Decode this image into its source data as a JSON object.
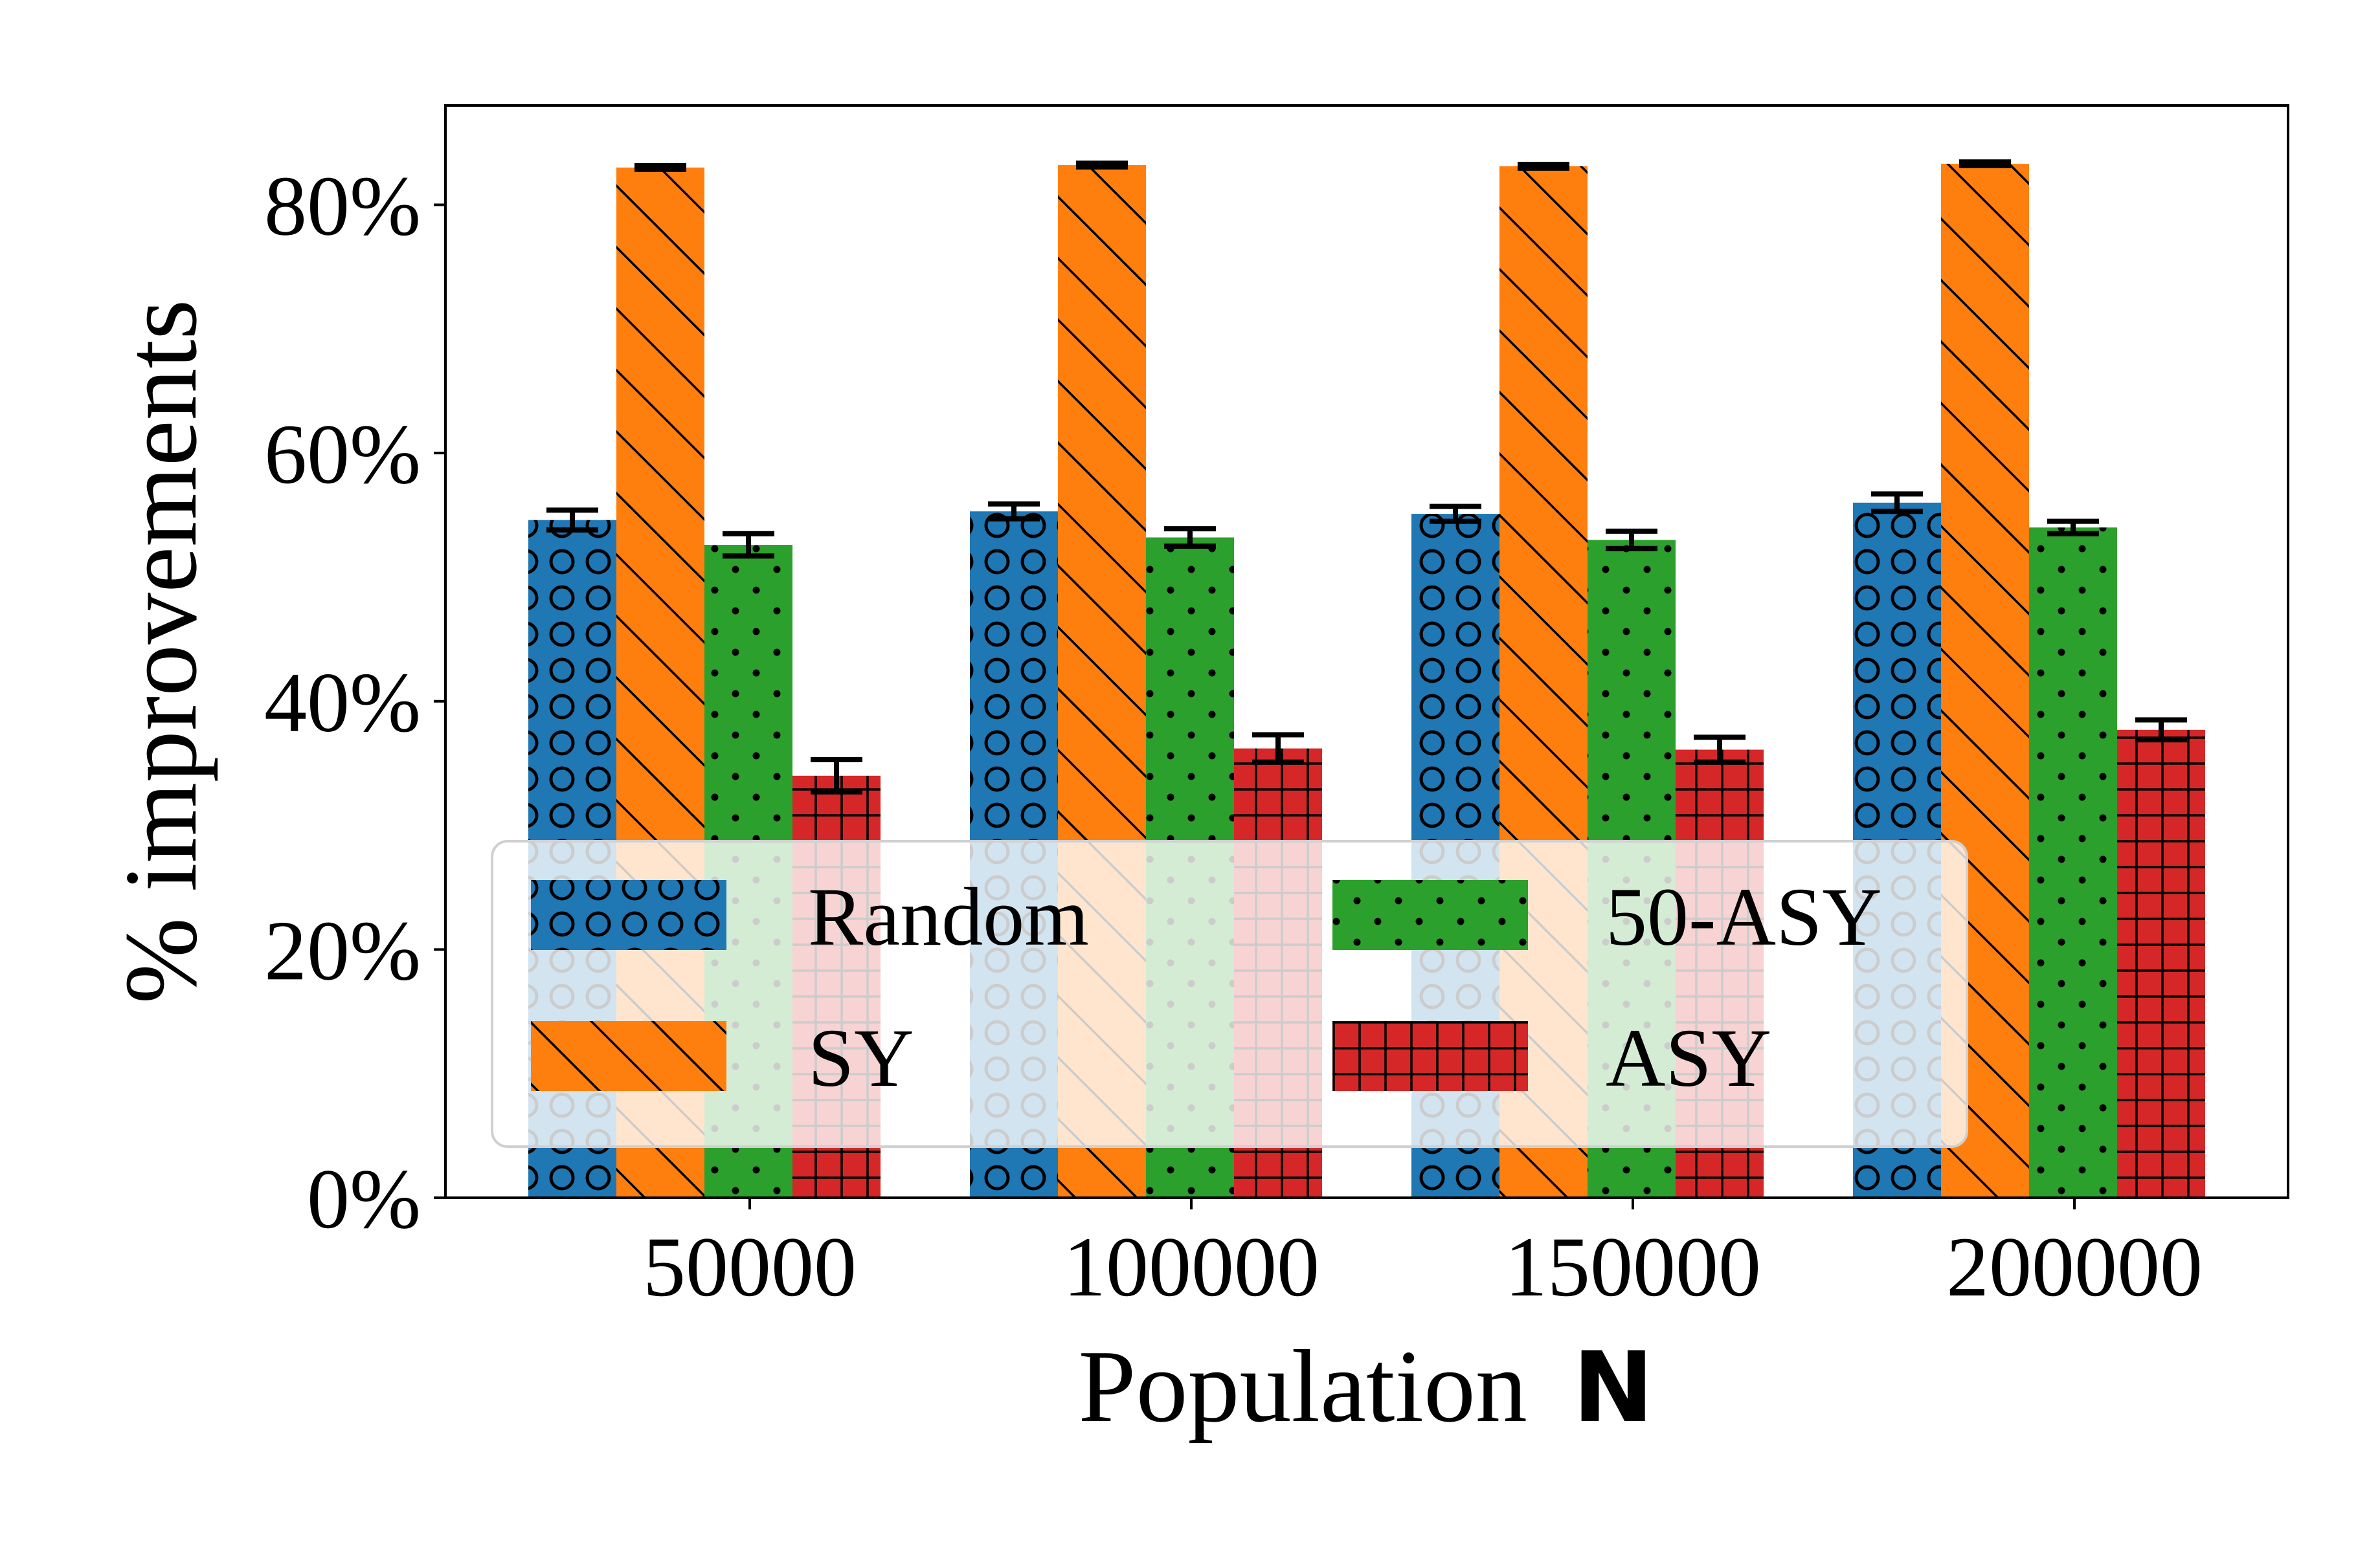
{
  "chart_data": {
    "type": "bar",
    "title": "",
    "xlabel": "Population",
    "xlabel_symbol": "N",
    "ylabel": "% improvements",
    "categories": [
      "50000",
      "100000",
      "150000",
      "200000"
    ],
    "ylim": [
      0,
      88
    ],
    "yticks": [
      0,
      20,
      40,
      60,
      80
    ],
    "ytick_labels": [
      "0%",
      "20%",
      "40%",
      "60%",
      "80%"
    ],
    "grid": false,
    "legend_position": "lower-center",
    "series": [
      {
        "name": "Random",
        "color": "#1f77b4",
        "hatch": "circles",
        "values": [
          54.6,
          55.3,
          55.1,
          56.0
        ],
        "errors": [
          0.8,
          0.6,
          0.6,
          0.7
        ]
      },
      {
        "name": "SY",
        "color": "#ff7f0e",
        "hatch": "diagonal",
        "values": [
          83.0,
          83.2,
          83.1,
          83.3
        ],
        "errors": [
          0.15,
          0.15,
          0.15,
          0.15
        ]
      },
      {
        "name": "50-ASY",
        "color": "#2ca02c",
        "hatch": "dots",
        "values": [
          52.6,
          53.2,
          53.0,
          54.0
        ],
        "errors": [
          0.9,
          0.7,
          0.7,
          0.5
        ]
      },
      {
        "name": "ASY",
        "color": "#d62728",
        "hatch": "grid",
        "values": [
          34.0,
          36.2,
          36.1,
          37.7
        ],
        "errors": [
          1.3,
          1.1,
          1.0,
          0.8
        ]
      }
    ]
  }
}
